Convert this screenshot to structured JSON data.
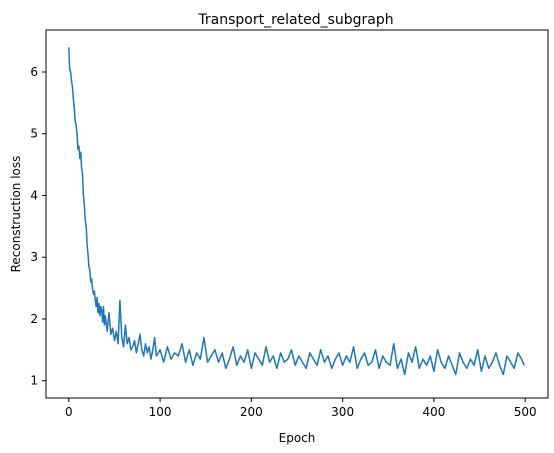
{
  "chart_data": {
    "type": "line",
    "title": "Transport_related_subgraph",
    "xlabel": "Epoch",
    "ylabel": "Reconstruction loss",
    "xlim": [
      -25,
      525
    ],
    "ylim": [
      0.72,
      6.68
    ],
    "xticks": [
      0,
      100,
      200,
      300,
      400,
      500
    ],
    "yticks": [
      1,
      2,
      3,
      4,
      5,
      6
    ],
    "grid": false,
    "line_color": "#1f77b4",
    "series": [
      {
        "x": [
          0,
          1,
          2,
          3,
          4,
          5,
          6,
          7,
          8,
          9,
          10,
          11,
          12,
          13,
          14,
          15,
          16,
          17,
          18,
          19,
          20,
          21,
          22,
          23,
          24,
          25,
          26,
          27,
          28,
          29,
          30,
          31,
          32,
          33,
          34,
          35,
          36,
          37,
          38,
          39,
          40,
          42,
          44,
          46,
          48,
          50,
          52,
          54,
          56,
          58,
          60,
          62,
          64,
          66,
          68,
          70,
          72,
          74,
          76,
          78,
          80,
          82,
          84,
          86,
          88,
          90,
          92,
          94,
          96,
          98,
          100,
          104,
          108,
          112,
          116,
          120,
          124,
          128,
          132,
          136,
          140,
          144,
          148,
          152,
          156,
          160,
          164,
          168,
          172,
          176,
          180,
          184,
          188,
          192,
          196,
          200,
          204,
          208,
          212,
          216,
          220,
          224,
          228,
          232,
          236,
          240,
          244,
          248,
          252,
          256,
          260,
          264,
          268,
          272,
          276,
          280,
          284,
          288,
          292,
          296,
          300,
          304,
          308,
          312,
          316,
          320,
          324,
          328,
          332,
          336,
          340,
          344,
          348,
          352,
          356,
          360,
          364,
          368,
          372,
          376,
          380,
          384,
          388,
          392,
          396,
          400,
          404,
          408,
          412,
          416,
          420,
          424,
          428,
          432,
          436,
          440,
          444,
          448,
          452,
          456,
          460,
          464,
          468,
          472,
          476,
          480,
          484,
          488,
          492,
          496,
          499
        ],
        "y": [
          6.4,
          6.05,
          6.0,
          5.85,
          5.75,
          5.55,
          5.4,
          5.2,
          5.15,
          5.0,
          4.75,
          4.8,
          4.6,
          4.7,
          4.45,
          4.35,
          4.0,
          3.85,
          3.6,
          3.5,
          3.2,
          3.05,
          2.85,
          2.8,
          2.6,
          2.65,
          2.5,
          2.4,
          2.45,
          2.3,
          2.2,
          2.35,
          2.1,
          2.25,
          2.05,
          2.2,
          2.15,
          1.95,
          2.2,
          1.9,
          2.05,
          1.8,
          2.1,
          1.75,
          1.85,
          1.65,
          1.8,
          1.6,
          2.3,
          1.7,
          1.55,
          1.9,
          1.6,
          1.7,
          1.5,
          1.55,
          1.65,
          1.45,
          1.6,
          1.75,
          1.5,
          1.4,
          1.6,
          1.45,
          1.55,
          1.35,
          1.5,
          1.7,
          1.4,
          1.45,
          1.5,
          1.3,
          1.55,
          1.35,
          1.45,
          1.4,
          1.6,
          1.3,
          1.5,
          1.25,
          1.45,
          1.35,
          1.7,
          1.3,
          1.4,
          1.5,
          1.3,
          1.45,
          1.2,
          1.35,
          1.55,
          1.25,
          1.4,
          1.3,
          1.5,
          1.2,
          1.45,
          1.35,
          1.25,
          1.55,
          1.3,
          1.4,
          1.2,
          1.45,
          1.3,
          1.35,
          1.5,
          1.25,
          1.4,
          1.3,
          1.2,
          1.45,
          1.35,
          1.25,
          1.5,
          1.3,
          1.4,
          1.2,
          1.35,
          1.45,
          1.25,
          1.4,
          1.3,
          1.55,
          1.2,
          1.35,
          1.45,
          1.25,
          1.3,
          1.5,
          1.2,
          1.4,
          1.3,
          1.25,
          1.6,
          1.2,
          1.35,
          1.1,
          1.45,
          1.3,
          1.55,
          1.2,
          1.35,
          1.25,
          1.4,
          1.15,
          1.5,
          1.3,
          1.2,
          1.4,
          1.25,
          1.1,
          1.45,
          1.3,
          1.2,
          1.35,
          1.25,
          1.5,
          1.15,
          1.4,
          1.2,
          1.3,
          1.45,
          1.25,
          1.1,
          1.4,
          1.3,
          1.2,
          1.45,
          1.35,
          1.25
        ]
      }
    ]
  }
}
